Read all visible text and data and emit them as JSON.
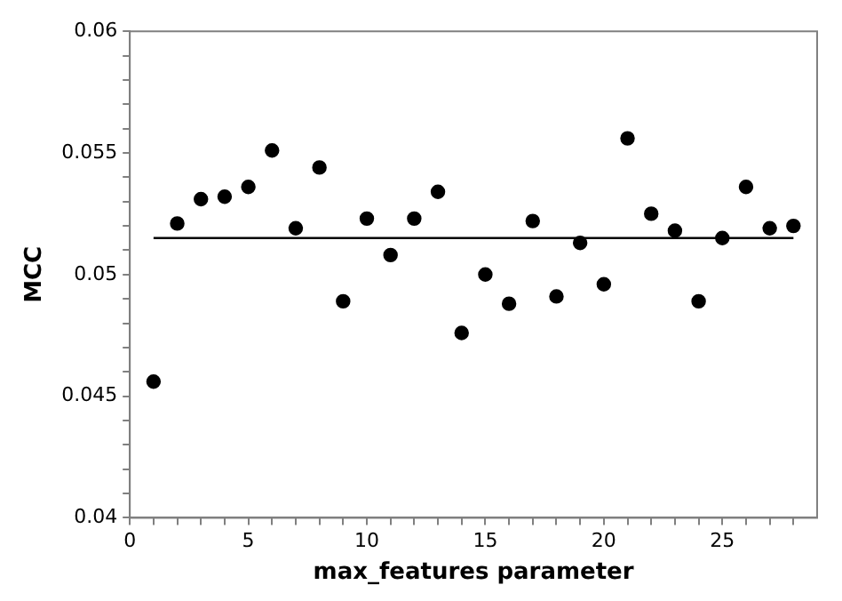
{
  "chart_data": {
    "type": "scatter",
    "xlabel": "max_features parameter",
    "ylabel": "MCC",
    "marker": "circle",
    "grid": false,
    "legend": false,
    "xlim": [
      0,
      29
    ],
    "ylim": [
      0.04,
      0.06
    ],
    "xticks": [
      0,
      {
        "value": 1,
        "label": null
      },
      {
        "value": 2,
        "label": null
      },
      {
        "value": 3,
        "label": null
      },
      {
        "value": 4,
        "label": null
      },
      5,
      {
        "value": 6,
        "label": null
      },
      {
        "value": 7,
        "label": null
      },
      {
        "value": 8,
        "label": null
      },
      {
        "value": 9,
        "label": null
      },
      10,
      {
        "value": 11,
        "label": null
      },
      {
        "value": 12,
        "label": null
      },
      {
        "value": 13,
        "label": null
      },
      {
        "value": 14,
        "label": null
      },
      15,
      {
        "value": 16,
        "label": null
      },
      {
        "value": 17,
        "label": null
      },
      {
        "value": 18,
        "label": null
      },
      {
        "value": 19,
        "label": null
      },
      20,
      {
        "value": 21,
        "label": null
      },
      {
        "value": 22,
        "label": null
      },
      {
        "value": 23,
        "label": null
      },
      {
        "value": 24,
        "label": null
      },
      25,
      {
        "value": 26,
        "label": null
      },
      {
        "value": 27,
        "label": null
      },
      {
        "value": 28,
        "label": null
      }
    ],
    "yticks": [
      0.04,
      {
        "value": 0.041,
        "label": null
      },
      {
        "value": 0.042,
        "label": null
      },
      {
        "value": 0.043,
        "label": null
      },
      {
        "value": 0.044,
        "label": null
      },
      0.045,
      {
        "value": 0.046,
        "label": null
      },
      {
        "value": 0.047,
        "label": null
      },
      {
        "value": 0.048,
        "label": null
      },
      {
        "value": 0.049,
        "label": null
      },
      0.05,
      {
        "value": 0.051,
        "label": null
      },
      {
        "value": 0.052,
        "label": null
      },
      {
        "value": 0.053,
        "label": null
      },
      {
        "value": 0.054,
        "label": null
      },
      0.055,
      {
        "value": 0.056,
        "label": null
      },
      {
        "value": 0.057,
        "label": null
      },
      {
        "value": 0.058,
        "label": null
      },
      {
        "value": 0.059,
        "label": null
      },
      0.06
    ],
    "series": [
      {
        "color": "#000000",
        "x": [
          1,
          2,
          3,
          4,
          5,
          6,
          7,
          8,
          9,
          10,
          11,
          12,
          13,
          14,
          15,
          16,
          17,
          18,
          19,
          20,
          21,
          22,
          23,
          24,
          25,
          26,
          27,
          28
        ],
        "values": [
          0.0456,
          0.0521,
          0.0531,
          0.0532,
          0.0536,
          0.0551,
          0.0519,
          0.0544,
          0.0489,
          0.0523,
          0.0508,
          0.0523,
          0.0534,
          0.0476,
          0.05,
          0.0488,
          0.0522,
          0.0491,
          0.0513,
          0.0496,
          0.0556,
          0.0525,
          0.0518,
          0.0489,
          0.0515,
          0.0536,
          0.0519,
          0.052
        ]
      },
      {
        "type": "line",
        "color": "#000000",
        "marker": "none",
        "x": [
          1,
          28
        ],
        "values": [
          0.0515,
          0.0515
        ]
      }
    ]
  }
}
